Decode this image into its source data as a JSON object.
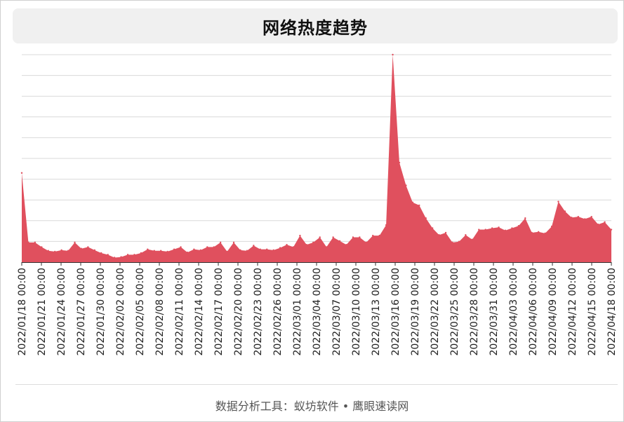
{
  "title": "网络热度趋势",
  "footer": "数据分析工具：蚁坊软件 • 鹰眼速读网",
  "colors": {
    "area": "#e0505e",
    "grid": "#d9d9d9",
    "axis": "#333333"
  },
  "chart_data": {
    "type": "area",
    "title": "网络热度趋势",
    "xlabel": "",
    "ylabel": "",
    "grid": true,
    "legend": "none",
    "ylim": [
      0,
      100
    ],
    "x_tick_labels": [
      "2022/01/18 00:00",
      "2022/01/21 00:00",
      "2022/01/24 00:00",
      "2022/01/27 00:00",
      "2022/01/30 00:00",
      "2022/02/02 00:00",
      "2022/02/05 00:00",
      "2022/02/08 00:00",
      "2022/02/11 00:00",
      "2022/02/14 00:00",
      "2022/02/17 00:00",
      "2022/02/20 00:00",
      "2022/02/23 00:00",
      "2022/02/26 00:00",
      "2022/03/01 00:00",
      "2022/03/04 00:00",
      "2022/03/07 00:00",
      "2022/03/10 00:00",
      "2022/03/13 00:00",
      "2022/03/16 00:00",
      "2022/03/19 00:00",
      "2022/03/22 00:00",
      "2022/03/25 00:00",
      "2022/03/28 00:00",
      "2022/03/31 00:00",
      "2022/04/03 00:00",
      "2022/04/06 00:00",
      "2022/04/09 00:00",
      "2022/04/12 00:00",
      "2022/04/15 00:00",
      "2022/04/18 00:00"
    ],
    "values": [
      43,
      9.5,
      9.5,
      7.3,
      5.5,
      5.1,
      5.8,
      5.5,
      9.5,
      6.5,
      7.3,
      5.8,
      4.4,
      3.6,
      2.2,
      2.5,
      3.6,
      3.6,
      4.4,
      6.2,
      5.5,
      5.5,
      5.1,
      6.2,
      7.3,
      4.7,
      6.2,
      5.8,
      7.3,
      7.3,
      9.5,
      5.1,
      9.5,
      5.8,
      5.5,
      8.0,
      6.2,
      6.2,
      5.8,
      6.9,
      8.4,
      7.3,
      12.8,
      8.4,
      9.5,
      12.0,
      7.3,
      12.0,
      10.2,
      8.4,
      12.0,
      12.0,
      9.5,
      12.8,
      12.8,
      17.9,
      100,
      48,
      37,
      28.8,
      27.4,
      21.2,
      16.4,
      13.1,
      14.2,
      9.5,
      9.9,
      13.1,
      10.9,
      15.7,
      15.7,
      16.4,
      16.8,
      15.3,
      16.4,
      17.5,
      21.2,
      14.2,
      14.6,
      13.9,
      17.2,
      29.2,
      24.5,
      21.5,
      21.9,
      20.8,
      21.9,
      18.2,
      19.3,
      15.7
    ]
  }
}
